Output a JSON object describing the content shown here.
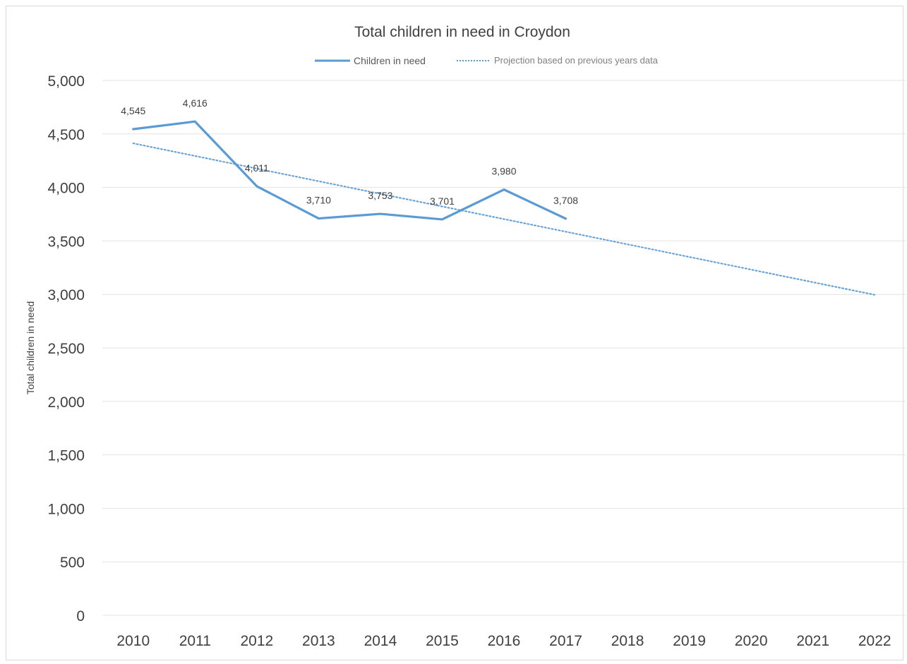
{
  "chart_data": {
    "type": "line",
    "title": "Total children in need in Croydon",
    "xlabel": "",
    "ylabel": "Total children in need",
    "categories": [
      "2010",
      "2011",
      "2012",
      "2013",
      "2014",
      "2015",
      "2016",
      "2017",
      "2018",
      "2019",
      "2020",
      "2021",
      "2022"
    ],
    "ylim": [
      0,
      5000
    ],
    "yticks": [
      0,
      500,
      1000,
      1500,
      2000,
      2500,
      3000,
      3500,
      4000,
      4500,
      5000
    ],
    "ytick_labels": [
      "0",
      "500",
      "1,000",
      "1,500",
      "2,000",
      "2,500",
      "3,000",
      "3,500",
      "4,000",
      "4,500",
      "5,000"
    ],
    "grid": true,
    "legend_position": "top",
    "series": [
      {
        "name": "Children in need",
        "style": "solid",
        "color": "#5b9bd5",
        "values": [
          4545,
          4616,
          4011,
          3710,
          3753,
          3701,
          3980,
          3708,
          null,
          null,
          null,
          null,
          null
        ],
        "data_labels": [
          "4,545",
          "4,616",
          "4,011",
          "3,710",
          "3,753",
          "3,701",
          "3,980",
          "3,708"
        ]
      },
      {
        "name": "Projection based on previous years data",
        "style": "dotted",
        "color": "#5b9bd5",
        "values": [
          4412,
          4294,
          4176,
          4058,
          3940,
          3822,
          3704,
          3586,
          3468,
          3350,
          3232,
          3114,
          2996
        ]
      }
    ]
  }
}
